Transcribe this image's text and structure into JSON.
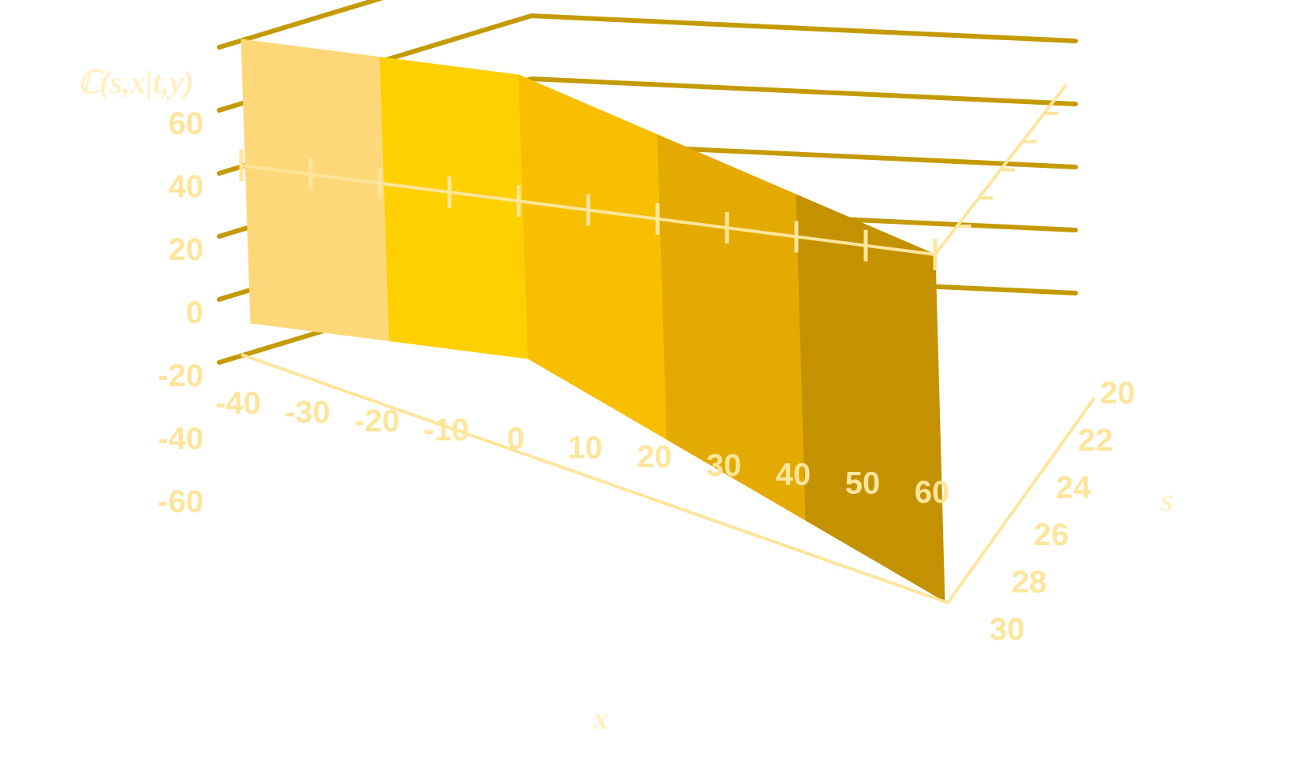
{
  "chart_data": {
    "type": "surface-3d",
    "title": "",
    "zlabel": "ℂ(s,x|t,y)",
    "xlabel": "x",
    "ylabel": "s",
    "x_ticks": [
      -40,
      -30,
      -20,
      -10,
      0,
      10,
      20,
      30,
      40,
      50,
      60
    ],
    "s_ticks": [
      20,
      22,
      24,
      26,
      28,
      30
    ],
    "z_ticks": [
      -60,
      -40,
      -20,
      0,
      20,
      40,
      60
    ],
    "xlim": [
      -40,
      60
    ],
    "slim": [
      20,
      30
    ],
    "zlim": [
      -60,
      60
    ],
    "grid": true,
    "surface": {
      "x": [
        -40,
        0,
        60
      ],
      "s": [
        20,
        30
      ],
      "z": [
        [
          40,
          40,
          0
        ],
        [
          0,
          0,
          -60
        ]
      ]
    },
    "colors": {
      "label": "#fde59b",
      "title": "#fff0c4",
      "grid": "#c49a00",
      "axis": "#fde59b",
      "surface_bands": [
        "#fed878",
        "#ffd000",
        "#f7bf00",
        "#e4aa00",
        "#c49200"
      ]
    }
  }
}
